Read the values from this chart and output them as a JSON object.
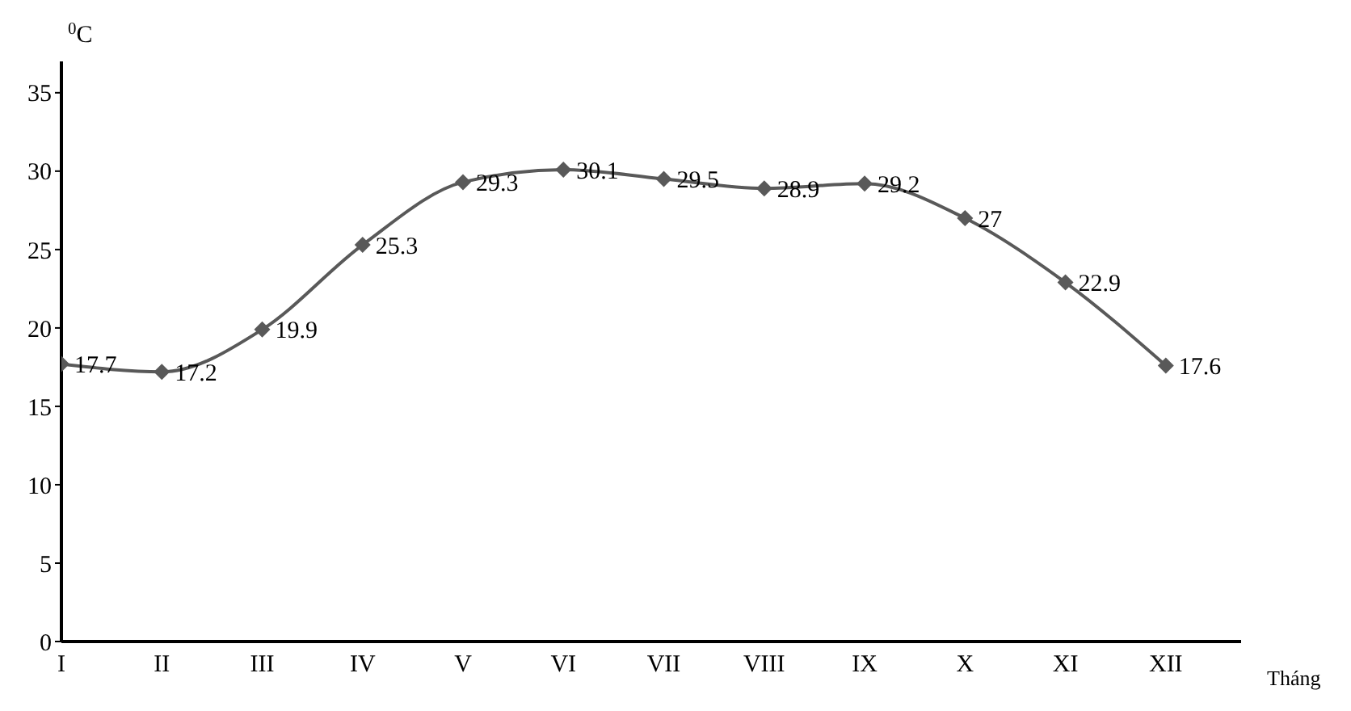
{
  "chart_data": {
    "type": "line",
    "ylabel": "$^{0}$C",
    "xlabel": "Tháng",
    "categories": [
      "I",
      "II",
      "III",
      "IV",
      "V",
      "VI",
      "VII",
      "VIII",
      "IX",
      "X",
      "XI",
      "XII"
    ],
    "series": [
      {
        "color": "#595959",
        "values": [
          17.7,
          17.2,
          19.9,
          25.3,
          29.3,
          30.1,
          29.5,
          28.9,
          29.2,
          27,
          22.9,
          17.6
        ]
      }
    ],
    "ylim": [
      0,
      37
    ],
    "yticks": [
      0,
      5,
      10,
      15,
      20,
      25,
      30,
      35
    ],
    "marker": "diamond",
    "line_style": "solid",
    "data_labels": true
  }
}
